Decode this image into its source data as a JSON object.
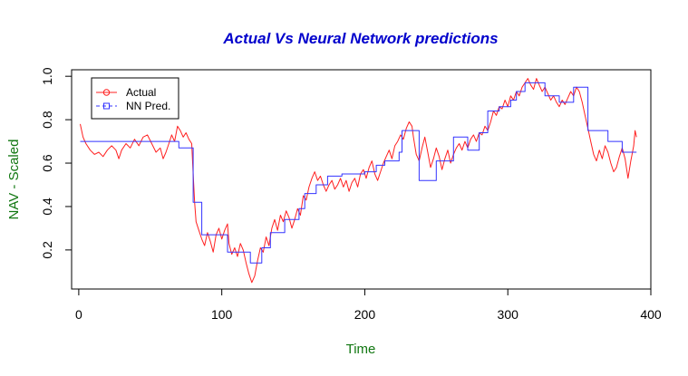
{
  "chart_data": {
    "type": "line",
    "title": "Actual Vs Neural Network predictions",
    "xlabel": "Time",
    "ylabel": "NAV - Scaled",
    "xlim": [
      -5,
      400
    ],
    "ylim": [
      0.02,
      1.03
    ],
    "x_ticks": [
      0,
      100,
      200,
      300,
      400
    ],
    "y_ticks": [
      0.2,
      0.4,
      0.6,
      0.8,
      1.0
    ],
    "x_tick_labels": [
      "0",
      "100",
      "200",
      "300",
      "400"
    ],
    "y_tick_labels": [
      "0.2",
      "0.4",
      "0.6",
      "0.8",
      "1.0"
    ],
    "legend_position": "top-left",
    "colors": {
      "title": "#0000cc",
      "axis_labels": "#117711",
      "actual": "#ff2020",
      "nn": "#3333ff"
    },
    "series": [
      {
        "name": "Actual",
        "style": "solid",
        "marker": "circle",
        "points": [
          [
            1,
            0.78
          ],
          [
            3,
            0.72
          ],
          [
            5,
            0.69
          ],
          [
            8,
            0.66
          ],
          [
            11,
            0.64
          ],
          [
            14,
            0.65
          ],
          [
            17,
            0.63
          ],
          [
            20,
            0.66
          ],
          [
            23,
            0.68
          ],
          [
            26,
            0.66
          ],
          [
            28,
            0.62
          ],
          [
            30,
            0.66
          ],
          [
            33,
            0.69
          ],
          [
            36,
            0.67
          ],
          [
            39,
            0.71
          ],
          [
            42,
            0.68
          ],
          [
            45,
            0.72
          ],
          [
            48,
            0.73
          ],
          [
            51,
            0.69
          ],
          [
            54,
            0.65
          ],
          [
            57,
            0.67
          ],
          [
            59,
            0.62
          ],
          [
            61,
            0.65
          ],
          [
            63,
            0.69
          ],
          [
            65,
            0.73
          ],
          [
            67,
            0.7
          ],
          [
            69,
            0.77
          ],
          [
            71,
            0.75
          ],
          [
            73,
            0.72
          ],
          [
            75,
            0.74
          ],
          [
            77,
            0.71
          ],
          [
            79,
            0.69
          ],
          [
            80,
            0.55
          ],
          [
            81,
            0.42
          ],
          [
            82,
            0.33
          ],
          [
            84,
            0.29
          ],
          [
            86,
            0.25
          ],
          [
            88,
            0.22
          ],
          [
            90,
            0.28
          ],
          [
            92,
            0.24
          ],
          [
            94,
            0.19
          ],
          [
            96,
            0.27
          ],
          [
            98,
            0.3
          ],
          [
            100,
            0.25
          ],
          [
            102,
            0.29
          ],
          [
            104,
            0.32
          ],
          [
            105,
            0.23
          ],
          [
            107,
            0.18
          ],
          [
            109,
            0.21
          ],
          [
            111,
            0.17
          ],
          [
            113,
            0.23
          ],
          [
            115,
            0.2
          ],
          [
            117,
            0.14
          ],
          [
            119,
            0.09
          ],
          [
            121,
            0.05
          ],
          [
            123,
            0.08
          ],
          [
            125,
            0.15
          ],
          [
            127,
            0.21
          ],
          [
            129,
            0.19
          ],
          [
            131,
            0.26
          ],
          [
            133,
            0.22
          ],
          [
            135,
            0.3
          ],
          [
            137,
            0.34
          ],
          [
            139,
            0.29
          ],
          [
            141,
            0.36
          ],
          [
            143,
            0.33
          ],
          [
            145,
            0.38
          ],
          [
            147,
            0.35
          ],
          [
            149,
            0.3
          ],
          [
            151,
            0.34
          ],
          [
            153,
            0.39
          ],
          [
            155,
            0.36
          ],
          [
            157,
            0.45
          ],
          [
            159,
            0.43
          ],
          [
            161,
            0.49
          ],
          [
            163,
            0.53
          ],
          [
            165,
            0.56
          ],
          [
            167,
            0.52
          ],
          [
            169,
            0.54
          ],
          [
            171,
            0.5
          ],
          [
            173,
            0.47
          ],
          [
            175,
            0.5
          ],
          [
            177,
            0.52
          ],
          [
            179,
            0.48
          ],
          [
            181,
            0.5
          ],
          [
            183,
            0.53
          ],
          [
            185,
            0.49
          ],
          [
            187,
            0.52
          ],
          [
            189,
            0.47
          ],
          [
            191,
            0.51
          ],
          [
            193,
            0.53
          ],
          [
            195,
            0.49
          ],
          [
            197,
            0.55
          ],
          [
            199,
            0.57
          ],
          [
            201,
            0.53
          ],
          [
            203,
            0.58
          ],
          [
            205,
            0.61
          ],
          [
            207,
            0.55
          ],
          [
            209,
            0.52
          ],
          [
            211,
            0.56
          ],
          [
            213,
            0.6
          ],
          [
            215,
            0.63
          ],
          [
            217,
            0.66
          ],
          [
            219,
            0.62
          ],
          [
            221,
            0.68
          ],
          [
            223,
            0.7
          ],
          [
            225,
            0.73
          ],
          [
            227,
            0.71
          ],
          [
            229,
            0.76
          ],
          [
            231,
            0.79
          ],
          [
            233,
            0.77
          ],
          [
            234,
            0.72
          ],
          [
            236,
            0.64
          ],
          [
            238,
            0.61
          ],
          [
            240,
            0.67
          ],
          [
            242,
            0.72
          ],
          [
            244,
            0.65
          ],
          [
            246,
            0.58
          ],
          [
            248,
            0.62
          ],
          [
            250,
            0.67
          ],
          [
            252,
            0.63
          ],
          [
            254,
            0.57
          ],
          [
            256,
            0.62
          ],
          [
            258,
            0.66
          ],
          [
            260,
            0.6
          ],
          [
            262,
            0.64
          ],
          [
            264,
            0.67
          ],
          [
            266,
            0.69
          ],
          [
            268,
            0.66
          ],
          [
            270,
            0.7
          ],
          [
            272,
            0.67
          ],
          [
            274,
            0.71
          ],
          [
            276,
            0.73
          ],
          [
            278,
            0.7
          ],
          [
            280,
            0.74
          ],
          [
            282,
            0.73
          ],
          [
            284,
            0.77
          ],
          [
            286,
            0.75
          ],
          [
            288,
            0.79
          ],
          [
            290,
            0.84
          ],
          [
            292,
            0.82
          ],
          [
            294,
            0.86
          ],
          [
            296,
            0.85
          ],
          [
            298,
            0.89
          ],
          [
            300,
            0.86
          ],
          [
            302,
            0.91
          ],
          [
            304,
            0.89
          ],
          [
            306,
            0.93
          ],
          [
            308,
            0.91
          ],
          [
            310,
            0.95
          ],
          [
            312,
            0.97
          ],
          [
            314,
            0.99
          ],
          [
            316,
            0.96
          ],
          [
            318,
            0.94
          ],
          [
            320,
            0.99
          ],
          [
            322,
            0.96
          ],
          [
            324,
            0.93
          ],
          [
            326,
            0.95
          ],
          [
            328,
            0.92
          ],
          [
            330,
            0.89
          ],
          [
            332,
            0.91
          ],
          [
            334,
            0.88
          ],
          [
            336,
            0.86
          ],
          [
            338,
            0.89
          ],
          [
            340,
            0.87
          ],
          [
            342,
            0.9
          ],
          [
            344,
            0.93
          ],
          [
            346,
            0.91
          ],
          [
            348,
            0.95
          ],
          [
            350,
            0.93
          ],
          [
            352,
            0.88
          ],
          [
            354,
            0.82
          ],
          [
            356,
            0.76
          ],
          [
            358,
            0.7
          ],
          [
            360,
            0.64
          ],
          [
            362,
            0.61
          ],
          [
            364,
            0.66
          ],
          [
            366,
            0.62
          ],
          [
            368,
            0.68
          ],
          [
            370,
            0.65
          ],
          [
            372,
            0.6
          ],
          [
            374,
            0.56
          ],
          [
            376,
            0.58
          ],
          [
            378,
            0.63
          ],
          [
            380,
            0.67
          ],
          [
            382,
            0.62
          ],
          [
            384,
            0.53
          ],
          [
            386,
            0.61
          ],
          [
            388,
            0.68
          ],
          [
            389,
            0.75
          ],
          [
            390,
            0.72
          ]
        ]
      },
      {
        "name": "NN Pred.",
        "style": "dashed",
        "marker": "square",
        "points": [
          [
            1,
            0.7
          ],
          [
            70,
            0.7
          ],
          [
            70,
            0.67
          ],
          [
            80,
            0.67
          ],
          [
            80,
            0.42
          ],
          [
            86,
            0.42
          ],
          [
            86,
            0.27
          ],
          [
            104,
            0.27
          ],
          [
            104,
            0.19
          ],
          [
            120,
            0.19
          ],
          [
            120,
            0.14
          ],
          [
            128,
            0.14
          ],
          [
            128,
            0.21
          ],
          [
            134,
            0.21
          ],
          [
            134,
            0.28
          ],
          [
            144,
            0.28
          ],
          [
            144,
            0.34
          ],
          [
            154,
            0.34
          ],
          [
            154,
            0.39
          ],
          [
            158,
            0.39
          ],
          [
            158,
            0.46
          ],
          [
            166,
            0.46
          ],
          [
            166,
            0.5
          ],
          [
            174,
            0.5
          ],
          [
            174,
            0.54
          ],
          [
            184,
            0.54
          ],
          [
            184,
            0.55
          ],
          [
            200,
            0.55
          ],
          [
            200,
            0.56
          ],
          [
            208,
            0.56
          ],
          [
            208,
            0.59
          ],
          [
            214,
            0.59
          ],
          [
            214,
            0.61
          ],
          [
            224,
            0.61
          ],
          [
            224,
            0.65
          ],
          [
            226,
            0.65
          ],
          [
            226,
            0.75
          ],
          [
            238,
            0.75
          ],
          [
            238,
            0.52
          ],
          [
            250,
            0.52
          ],
          [
            250,
            0.61
          ],
          [
            262,
            0.61
          ],
          [
            262,
            0.72
          ],
          [
            272,
            0.72
          ],
          [
            272,
            0.66
          ],
          [
            280,
            0.66
          ],
          [
            280,
            0.74
          ],
          [
            286,
            0.74
          ],
          [
            286,
            0.84
          ],
          [
            294,
            0.84
          ],
          [
            294,
            0.86
          ],
          [
            302,
            0.86
          ],
          [
            302,
            0.89
          ],
          [
            306,
            0.89
          ],
          [
            306,
            0.93
          ],
          [
            312,
            0.93
          ],
          [
            312,
            0.97
          ],
          [
            326,
            0.97
          ],
          [
            326,
            0.91
          ],
          [
            336,
            0.91
          ],
          [
            336,
            0.88
          ],
          [
            346,
            0.88
          ],
          [
            346,
            0.95
          ],
          [
            356,
            0.95
          ],
          [
            356,
            0.75
          ],
          [
            370,
            0.75
          ],
          [
            370,
            0.7
          ],
          [
            380,
            0.7
          ],
          [
            380,
            0.65
          ],
          [
            390,
            0.65
          ]
        ]
      }
    ]
  }
}
